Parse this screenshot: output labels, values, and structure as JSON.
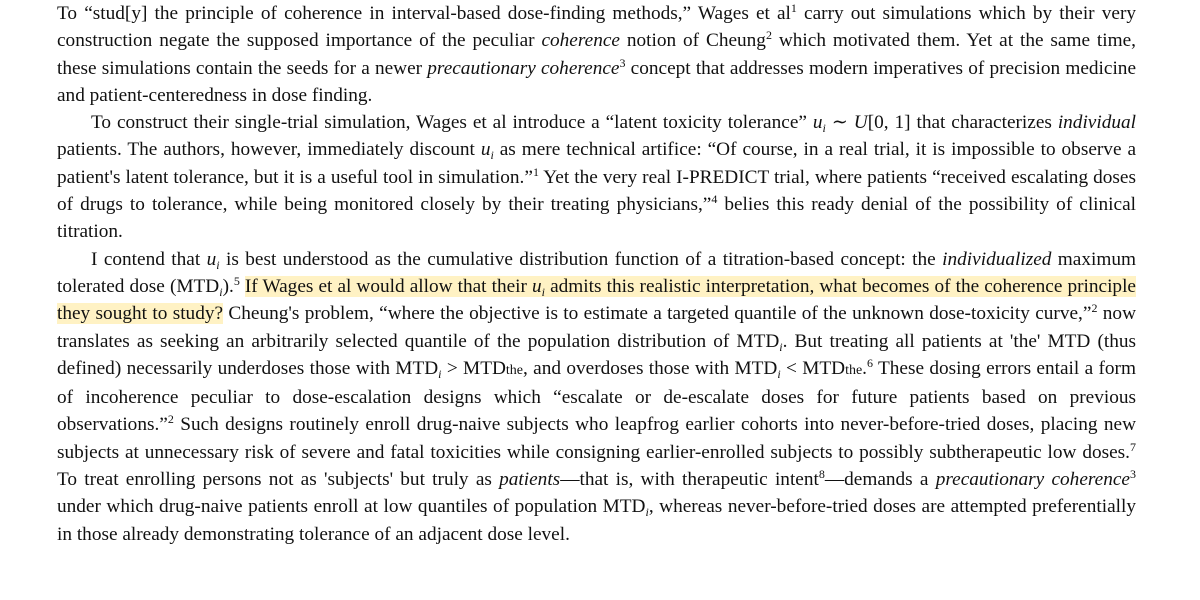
{
  "paragraph1": {
    "s1": "To “stud[y] the principle of coherence in interval-based dose-finding methods,” Wages et al",
    "ref1": "1",
    "s2": " carry out simulations which by their very construction negate the supposed importance of the peculiar ",
    "em_coherence": "coherence",
    "s3": " notion of Cheung",
    "ref2": "2",
    "s4": " which motivated them. Yet at the same time, these simulations contain the seeds for a newer ",
    "em_precautionary": "precautionary coherence",
    "ref3": "3",
    "s5": " concept that addresses modern imperatives of precision medicine and patient-centeredness in dose finding."
  },
  "paragraph2": {
    "s1": "To construct their single-trial simulation, Wages et al introduce a “latent toxicity tolerance” ",
    "var_u": "u",
    "sub_i": "i",
    "s2": " ∼ ",
    "var_U": "U",
    "s3": "[0, 1] that charac­terizes ",
    "em_individual": "individual",
    "s4": " patients. The authors, however, immediately discount ",
    "s5": " as mere technical artifice: “Of course, in a real trial, it is impossible to observe a patient's latent tolerance, but it is a useful tool in simulation.”",
    "ref1": "1",
    "s6": " Yet the very real I-PREDICT trial, where patients “received escalating doses of drugs to tolerance, while being monitored closely by their treating physicians,”",
    "ref4": "4",
    "s7": " belies this ready denial of the possibility of clinical titration."
  },
  "paragraph3": {
    "s1": "I contend that ",
    "s2": " is best understood as the cumulative distribution function of a titration-based concept: the ",
    "em_individualized": "individ­ualized",
    "s3": " maximum tolerated dose (MTD",
    "s4": ").",
    "ref5": "5",
    "s5_space": " ",
    "hl_a": "If Wages et al would allow that their ",
    "hl_b": " admits this realistic interpretation, what becomes of the coherence principle they sought to study?",
    "s6": " Cheung's problem, “where the objective is to estimate a targeted quantile of the unknown dose-toxicity curve,”",
    "ref2": "2",
    "s7": " now translates as seeking an arbitrarily selected quantile of the population distribution of MTD",
    "s8": ". But treating all patients at 'the' MTD (thus defined) necessarily underdoses those with MTD",
    "gt": " > MTD",
    "sub_the": "the",
    "s9": ", and overdoses those with MTD",
    "lt": " < MTD",
    "s10": ".",
    "ref6": "6",
    "s11": " These dosing errors entail a form of incoherence peculiar to dose-escalation designs which “escalate or de-escalate doses for future patients based on previous observations.”",
    "s12": " Such designs routinely enroll drug-naive subjects who leapfrog earlier cohorts into never-before-tried doses, placing new subjects at unnecessary risk of severe and fatal toxicities while consigning earlier-enrolled subjects to possibly sub­therapeutic low doses.",
    "ref7": "7",
    "s13": " To treat enrolling persons not as 'subjects' but truly as ",
    "em_patients": "patients",
    "s14": "—that is, with therapeutic intent",
    "ref8": "8",
    "s15": "—demands a ",
    "em_precautionary": "precautionary coherence",
    "ref3": "3",
    "s16": " under which drug-naive patients enroll at low quantiles of population MTD",
    "s17": ", whereas never-before-tried doses are attempted preferentially in those already demonstrating tolerance of an adjacent dose level."
  },
  "colors": {
    "highlight": "#fff2c4",
    "text": "#111111"
  }
}
